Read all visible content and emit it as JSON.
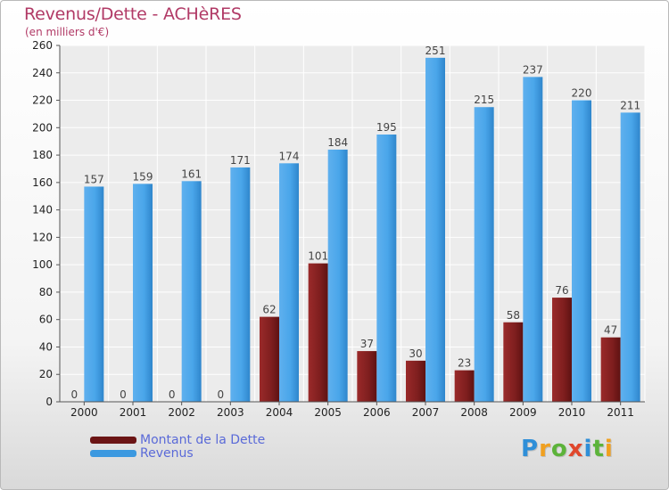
{
  "title": "Revenus/Dette - ACHèRES",
  "subtitle": "(en milliers d'€)",
  "chart_data": {
    "type": "bar",
    "categories": [
      "2000",
      "2001",
      "2002",
      "2003",
      "2004",
      "2005",
      "2006",
      "2007",
      "2008",
      "2009",
      "2010",
      "2011"
    ],
    "series": [
      {
        "name": "Montant de la Dette",
        "color": "#8b1c1c",
        "values": [
          0,
          0,
          0,
          0,
          62,
          101,
          37,
          30,
          23,
          58,
          76,
          47
        ]
      },
      {
        "name": "Revenus",
        "color": "#3c99e0",
        "values": [
          157,
          159,
          161,
          171,
          174,
          184,
          195,
          251,
          215,
          237,
          220,
          211
        ]
      }
    ],
    "yticks": [
      0,
      20,
      40,
      60,
      80,
      100,
      120,
      140,
      160,
      180,
      200,
      220,
      240,
      260
    ],
    "ylim": [
      0,
      260
    ],
    "grid": true,
    "legend": "bottom-left"
  },
  "legend": {
    "debt_label": "Montant de la Dette",
    "revenue_label": "Revenus"
  },
  "logo": {
    "letters": [
      "P",
      "r",
      "o",
      "x",
      "i",
      "t",
      "i"
    ],
    "colors": [
      "#2f8fd8",
      "#f0a020",
      "#5cb33a",
      "#e0472c",
      "#2f8fd8",
      "#5cb33a",
      "#f0a020"
    ]
  }
}
